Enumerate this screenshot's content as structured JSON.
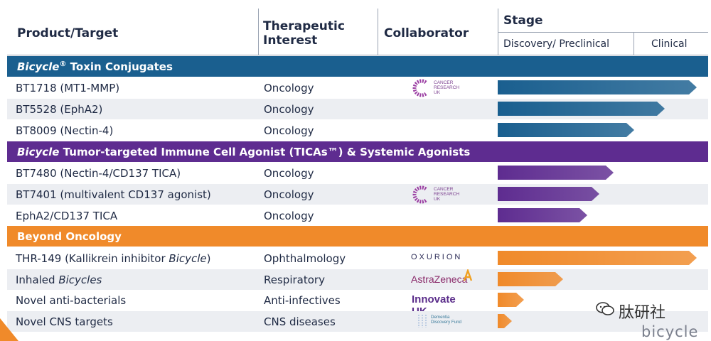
{
  "header": {
    "product_target": "Product/Target",
    "therapeutic_interest_1": "Therapeutic",
    "therapeutic_interest_2": "Interest",
    "collaborator": "Collaborator",
    "stage": "Stage",
    "stage_discovery": "Discovery/ Preclinical",
    "stage_clinical": "Clinical"
  },
  "colors": {
    "blue": "#1a5f8f",
    "purple": "#5e2c90",
    "orange": "#f08a2a",
    "text": "#1f2a44"
  },
  "sections": [
    {
      "title_italic": "Bicycle",
      "title_reg": "®",
      "title_rest": " Toxin Conjugates",
      "color": "#1a5f8f",
      "rows": [
        {
          "product": "BT1718 (MT1-MMP)",
          "interest": "Oncology",
          "collaborator": "CANCER RESEARCH UK",
          "stage_fraction": 0.98
        },
        {
          "product": "BT5528 (EphA2)",
          "interest": "Oncology",
          "collaborator": "",
          "stage_fraction": 0.82
        },
        {
          "product": "BT8009 (Nectin-4)",
          "interest": "Oncology",
          "collaborator": "",
          "stage_fraction": 0.67
        }
      ]
    },
    {
      "title_italic": "Bicycle",
      "title_reg": "",
      "title_rest": " Tumor-targeted Immune Cell Agonist (TICAs™) & Systemic Agonists",
      "color": "#5e2c90",
      "rows": [
        {
          "product": "BT7480 (Nectin-4/CD137 TICA)",
          "interest": "Oncology",
          "collaborator": "",
          "stage_fraction": 0.57
        },
        {
          "product": "BT7401 (multivalent CD137 agonist)",
          "interest": "Oncology",
          "collaborator": "CANCER RESEARCH UK",
          "stage_fraction": 0.5
        },
        {
          "product": "EphA2/CD137 TICA",
          "interest": "Oncology",
          "collaborator": "",
          "stage_fraction": 0.44
        }
      ]
    },
    {
      "title_italic": "",
      "title_reg": "",
      "title_rest": "Beyond Oncology",
      "color": "#f08a2a",
      "rows": [
        {
          "product_pre": "THR-149 (Kallikrein inhibitor ",
          "product_it": "Bicycle",
          "product_post": ")",
          "interest": "Ophthalmology",
          "collaborator": "OXURION",
          "stage_fraction": 0.98
        },
        {
          "product_pre": "Inhaled ",
          "product_it": "Bicycles",
          "product_post": "",
          "interest": "Respiratory",
          "collaborator": "AstraZeneca",
          "stage_fraction": 0.32
        },
        {
          "product_pre": "Novel anti-bacterials",
          "product_it": "",
          "product_post": "",
          "interest": "Anti-infectives",
          "collaborator": "Innovate UK",
          "stage_fraction": 0.13
        },
        {
          "product_pre": "Novel CNS targets",
          "product_it": "",
          "product_post": "",
          "interest": "CNS diseases",
          "collaborator": "Dementia Discovery Fund",
          "stage_fraction": 0.07
        }
      ]
    }
  ],
  "watermark": "肽研社",
  "brand": "bicycle"
}
